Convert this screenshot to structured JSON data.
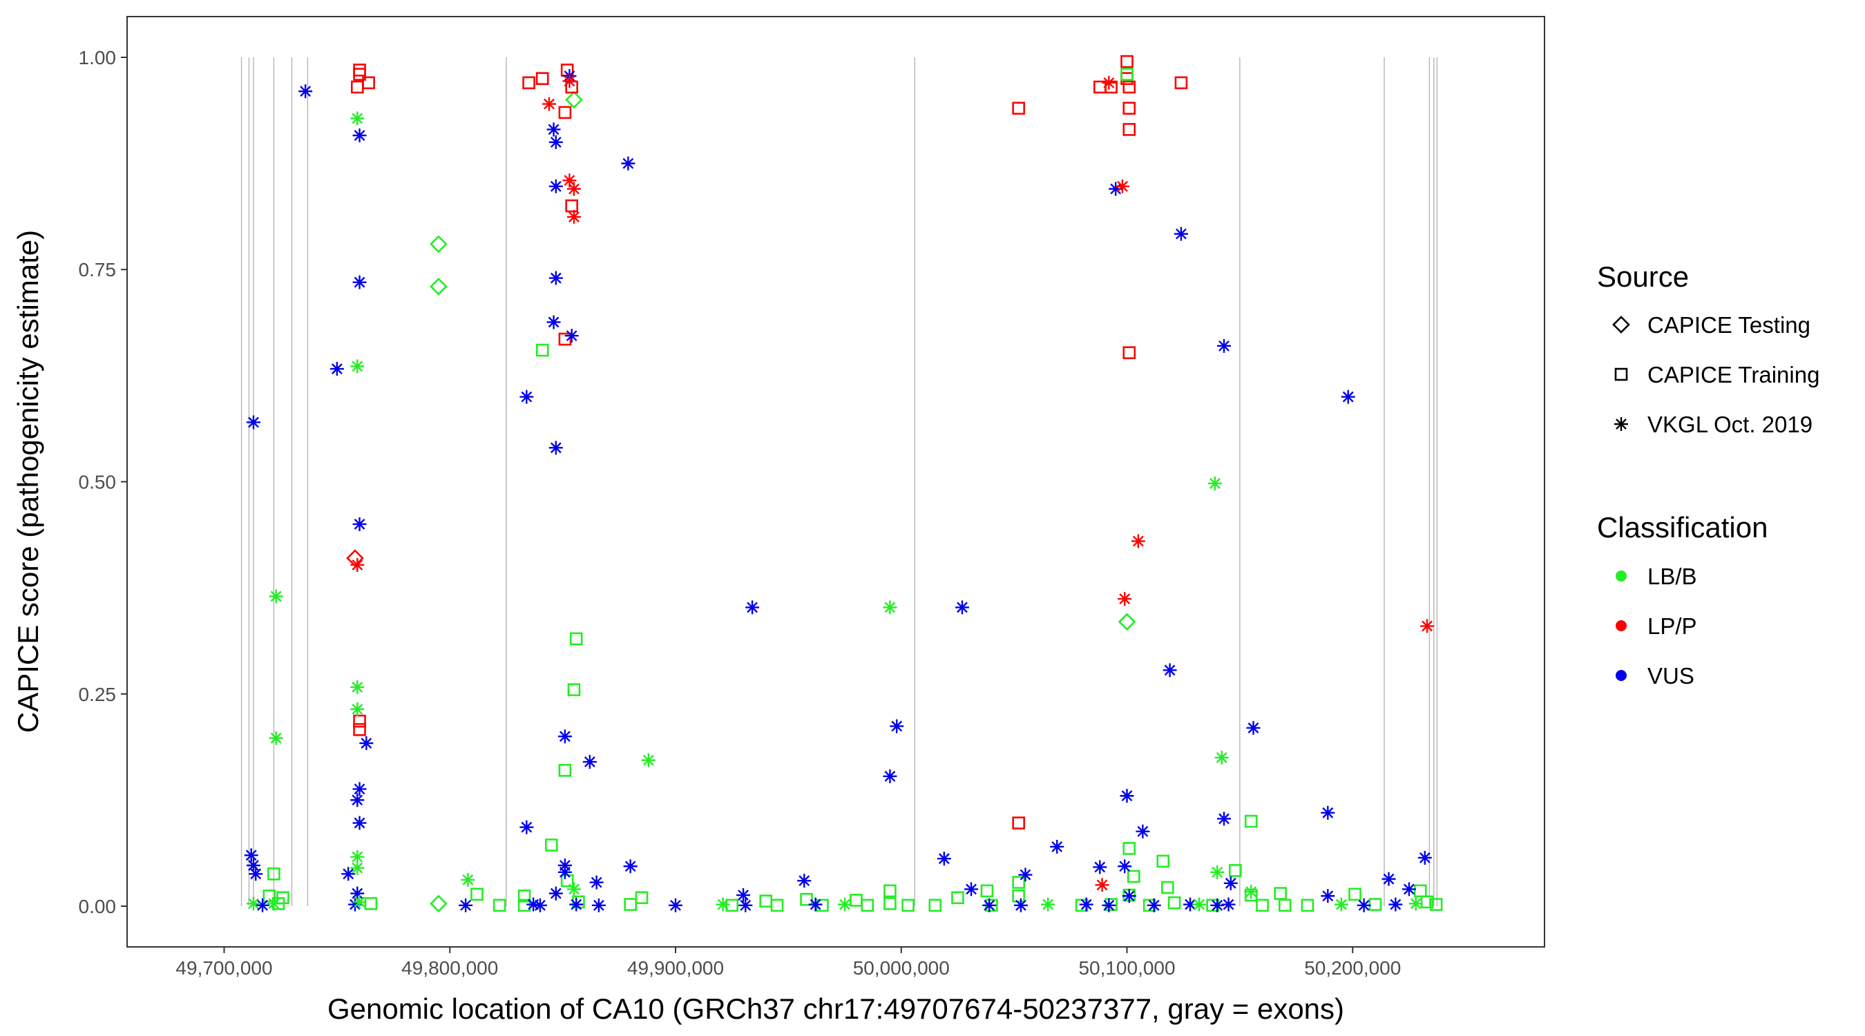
{
  "chart_data": {
    "type": "scatter",
    "xlabel": "Genomic location of CA10 (GRCh37 chr17:49707674-50237377, gray = exons)",
    "ylabel": "CAPICE score (pathogenicity estimate)",
    "xlim": [
      49657000,
      50285000
    ],
    "ylim": [
      -0.048,
      1.048
    ],
    "x_ticks": [
      49700000,
      49800000,
      49900000,
      50000000,
      50100000,
      50200000
    ],
    "x_tick_labels": [
      "49,700,000",
      "49,800,000",
      "49,900,000",
      "50,000,000",
      "50,100,000",
      "50,200,000"
    ],
    "y_ticks": [
      0,
      0.25,
      0.5,
      0.75,
      1
    ],
    "y_tick_labels": [
      "0.00",
      "0.25",
      "0.50",
      "0.75",
      "1.00"
    ],
    "grid": false,
    "exons": [
      49707674,
      49711000,
      49713000,
      49722000,
      49730000,
      49737000,
      49825000,
      50006000,
      50150000,
      50214000,
      50234000,
      50236000,
      50237377
    ],
    "colors": {
      "LB/B": "#22ee22",
      "LP/P": "#ff0000",
      "VUS": "#0000ee"
    },
    "legend": {
      "source_title": "Source",
      "source_items": [
        {
          "label": "CAPICE Testing",
          "shape": "diamond"
        },
        {
          "label": "CAPICE Training",
          "shape": "square"
        },
        {
          "label": "VKGL Oct. 2019",
          "shape": "asterisk"
        }
      ],
      "class_title": "Classification",
      "class_items": [
        {
          "label": "LB/B",
          "color": "#22ee22"
        },
        {
          "label": "LP/P",
          "color": "#ff0000"
        },
        {
          "label": "VUS",
          "color": "#0000ee"
        }
      ],
      "position": "right"
    },
    "series": [
      {
        "name": "CAPICE Testing",
        "shape": "diamond",
        "points": [
          [
            49855000,
            0.95,
            "LB/B"
          ],
          [
            49795000,
            0.78,
            "LB/B"
          ],
          [
            49795000,
            0.73,
            "LB/B"
          ],
          [
            49758000,
            0.41,
            "LP/P"
          ],
          [
            50100000,
            0.335,
            "LB/B"
          ],
          [
            49795000,
            0.003,
            "LB/B"
          ]
        ]
      },
      {
        "name": "CAPICE Training",
        "shape": "square",
        "points": [
          [
            49760000,
            0.985,
            "LP/P"
          ],
          [
            49760000,
            0.98,
            "LP/P"
          ],
          [
            49759000,
            0.965,
            "LP/P"
          ],
          [
            49764000,
            0.97,
            "LP/P"
          ],
          [
            49835000,
            0.97,
            "LP/P"
          ],
          [
            49841000,
            0.975,
            "LP/P"
          ],
          [
            49852000,
            0.985,
            "LP/P"
          ],
          [
            49854000,
            0.965,
            "LP/P"
          ],
          [
            49851000,
            0.935,
            "LP/P"
          ],
          [
            49854000,
            0.825,
            "LP/P"
          ],
          [
            49851000,
            0.668,
            "LP/P"
          ],
          [
            49760000,
            0.218,
            "LP/P"
          ],
          [
            49760000,
            0.208,
            "LP/P"
          ],
          [
            50052000,
            0.94,
            "LP/P"
          ],
          [
            50088000,
            0.965,
            "LP/P"
          ],
          [
            50093000,
            0.965,
            "LP/P"
          ],
          [
            50100000,
            0.995,
            "LP/P"
          ],
          [
            50100000,
            0.975,
            "LP/P"
          ],
          [
            50101000,
            0.965,
            "LP/P"
          ],
          [
            50101000,
            0.94,
            "LP/P"
          ],
          [
            50101000,
            0.915,
            "LP/P"
          ],
          [
            50124000,
            0.97,
            "LP/P"
          ],
          [
            50101000,
            0.652,
            "LP/P"
          ],
          [
            50052000,
            0.098,
            "LP/P"
          ],
          [
            49841000,
            0.655,
            "LB/B"
          ],
          [
            49856000,
            0.315,
            "LB/B"
          ],
          [
            49855000,
            0.255,
            "LB/B"
          ],
          [
            49851000,
            0.16,
            "LB/B"
          ],
          [
            49845000,
            0.072,
            "LB/B"
          ],
          [
            50100000,
            0.98,
            "LB/B"
          ],
          [
            50155000,
            0.1,
            "LB/B"
          ],
          [
            50116000,
            0.053,
            "LB/B"
          ],
          [
            50101000,
            0.068,
            "LB/B"
          ],
          [
            50103000,
            0.035,
            "LB/B"
          ],
          [
            50148000,
            0.042,
            "LB/B"
          ],
          [
            49722000,
            0.038,
            "LB/B"
          ],
          [
            49720000,
            0.012,
            "LB/B"
          ],
          [
            49726000,
            0.01,
            "LB/B"
          ],
          [
            49724000,
            0.003,
            "LB/B"
          ],
          [
            49765000,
            0.003,
            "LB/B"
          ],
          [
            49812000,
            0.014,
            "LB/B"
          ],
          [
            49822000,
            0.001,
            "LB/B"
          ],
          [
            49833000,
            0.012,
            "LB/B"
          ],
          [
            49833000,
            0.001,
            "LB/B"
          ],
          [
            49852000,
            0.03,
            "LB/B"
          ],
          [
            49857000,
            0.005,
            "LB/B"
          ],
          [
            49880000,
            0.002,
            "LB/B"
          ],
          [
            49885000,
            0.01,
            "LB/B"
          ],
          [
            49925000,
            0.001,
            "LB/B"
          ],
          [
            49940000,
            0.006,
            "LB/B"
          ],
          [
            49945000,
            0.001,
            "LB/B"
          ],
          [
            49958000,
            0.008,
            "LB/B"
          ],
          [
            49965000,
            0.001,
            "LB/B"
          ],
          [
            49980000,
            0.007,
            "LB/B"
          ],
          [
            49985000,
            0.001,
            "LB/B"
          ],
          [
            49995000,
            0.018,
            "LB/B"
          ],
          [
            49995000,
            0.003,
            "LB/B"
          ],
          [
            50003000,
            0.001,
            "LB/B"
          ],
          [
            50015000,
            0.001,
            "LB/B"
          ],
          [
            50025000,
            0.01,
            "LB/B"
          ],
          [
            50038000,
            0.018,
            "LB/B"
          ],
          [
            50040000,
            0.001,
            "LB/B"
          ],
          [
            50052000,
            0.028,
            "LB/B"
          ],
          [
            50052000,
            0.012,
            "LB/B"
          ],
          [
            50080000,
            0.001,
            "LB/B"
          ],
          [
            50093000,
            0.002,
            "LB/B"
          ],
          [
            50101000,
            0.013,
            "LB/B"
          ],
          [
            50110000,
            0.001,
            "LB/B"
          ],
          [
            50118000,
            0.022,
            "LB/B"
          ],
          [
            50121000,
            0.004,
            "LB/B"
          ],
          [
            50138000,
            0.001,
            "LB/B"
          ],
          [
            50155000,
            0.013,
            "LB/B"
          ],
          [
            50160000,
            0.001,
            "LB/B"
          ],
          [
            50168000,
            0.015,
            "LB/B"
          ],
          [
            50170000,
            0.001,
            "LB/B"
          ],
          [
            50180000,
            0.001,
            "LB/B"
          ],
          [
            50201000,
            0.014,
            "LB/B"
          ],
          [
            50210000,
            0.002,
            "LB/B"
          ],
          [
            50230000,
            0.018,
            "LB/B"
          ],
          [
            50233000,
            0.005,
            "LB/B"
          ],
          [
            50237000,
            0.002,
            "LB/B"
          ]
        ]
      },
      {
        "name": "VKGL Oct. 2019",
        "shape": "asterisk",
        "points": [
          [
            49736000,
            0.96,
            "VUS"
          ],
          [
            49760000,
            0.908,
            "VUS"
          ],
          [
            49760000,
            0.735,
            "VUS"
          ],
          [
            49750000,
            0.633,
            "VUS"
          ],
          [
            49713000,
            0.57,
            "VUS"
          ],
          [
            49760000,
            0.45,
            "VUS"
          ],
          [
            49763000,
            0.192,
            "VUS"
          ],
          [
            49760000,
            0.138,
            "VUS"
          ],
          [
            49759000,
            0.125,
            "VUS"
          ],
          [
            49760000,
            0.098,
            "VUS"
          ],
          [
            49712000,
            0.06,
            "VUS"
          ],
          [
            49713000,
            0.048,
            "VUS"
          ],
          [
            49714000,
            0.038,
            "VUS"
          ],
          [
            49755000,
            0.038,
            "VUS"
          ],
          [
            49759000,
            0.015,
            "VUS"
          ],
          [
            49717000,
            0.001,
            "VUS"
          ],
          [
            49758000,
            0.002,
            "VUS"
          ],
          [
            49853000,
            0.978,
            "VUS"
          ],
          [
            49846000,
            0.915,
            "VUS"
          ],
          [
            49847000,
            0.9,
            "VUS"
          ],
          [
            49847000,
            0.848,
            "VUS"
          ],
          [
            49879000,
            0.875,
            "VUS"
          ],
          [
            49847000,
            0.74,
            "VUS"
          ],
          [
            49846000,
            0.688,
            "VUS"
          ],
          [
            49854000,
            0.672,
            "VUS"
          ],
          [
            49834000,
            0.6,
            "VUS"
          ],
          [
            49847000,
            0.54,
            "VUS"
          ],
          [
            49851000,
            0.2,
            "VUS"
          ],
          [
            49862000,
            0.17,
            "VUS"
          ],
          [
            49834000,
            0.093,
            "VUS"
          ],
          [
            49880000,
            0.047,
            "VUS"
          ],
          [
            49851000,
            0.048,
            "VUS"
          ],
          [
            49851000,
            0.04,
            "VUS"
          ],
          [
            49865000,
            0.028,
            "VUS"
          ],
          [
            49847000,
            0.015,
            "VUS"
          ],
          [
            49807000,
            0.001,
            "VUS"
          ],
          [
            49837000,
            0.002,
            "VUS"
          ],
          [
            49840000,
            0.001,
            "VUS"
          ],
          [
            49856000,
            0.002,
            "VUS"
          ],
          [
            49866000,
            0.001,
            "VUS"
          ],
          [
            49900000,
            0.001,
            "VUS"
          ],
          [
            49934000,
            0.352,
            "VUS"
          ],
          [
            49930000,
            0.013,
            "VUS"
          ],
          [
            49931000,
            0.001,
            "VUS"
          ],
          [
            49957000,
            0.03,
            "VUS"
          ],
          [
            49962000,
            0.002,
            "VUS"
          ],
          [
            49998000,
            0.212,
            "VUS"
          ],
          [
            49995000,
            0.153,
            "VUS"
          ],
          [
            50027000,
            0.352,
            "VUS"
          ],
          [
            50019000,
            0.056,
            "VUS"
          ],
          [
            50031000,
            0.02,
            "VUS"
          ],
          [
            50039000,
            0.001,
            "VUS"
          ],
          [
            50055000,
            0.037,
            "VUS"
          ],
          [
            50053000,
            0.001,
            "VUS"
          ],
          [
            50069000,
            0.07,
            "VUS"
          ],
          [
            50095000,
            0.845,
            "VUS"
          ],
          [
            50124000,
            0.792,
            "VUS"
          ],
          [
            50143000,
            0.66,
            "VUS"
          ],
          [
            50198000,
            0.6,
            "VUS"
          ],
          [
            50119000,
            0.278,
            "VUS"
          ],
          [
            50156000,
            0.21,
            "VUS"
          ],
          [
            50100000,
            0.13,
            "VUS"
          ],
          [
            50189000,
            0.11,
            "VUS"
          ],
          [
            50143000,
            0.103,
            "VUS"
          ],
          [
            50107000,
            0.088,
            "VUS"
          ],
          [
            50232000,
            0.057,
            "VUS"
          ],
          [
            50088000,
            0.046,
            "VUS"
          ],
          [
            50099000,
            0.047,
            "VUS"
          ],
          [
            50216000,
            0.032,
            "VUS"
          ],
          [
            50146000,
            0.027,
            "VUS"
          ],
          [
            50225000,
            0.02,
            "VUS"
          ],
          [
            50101000,
            0.012,
            "VUS"
          ],
          [
            50189000,
            0.012,
            "VUS"
          ],
          [
            50082000,
            0.002,
            "VUS"
          ],
          [
            50092000,
            0.001,
            "VUS"
          ],
          [
            50112000,
            0.001,
            "VUS"
          ],
          [
            50128000,
            0.002,
            "VUS"
          ],
          [
            50140000,
            0.001,
            "VUS"
          ],
          [
            50145000,
            0.002,
            "VUS"
          ],
          [
            50205000,
            0.001,
            "VUS"
          ],
          [
            50219000,
            0.002,
            "VUS"
          ],
          [
            49844000,
            0.945,
            "LP/P"
          ],
          [
            49853000,
            0.972,
            "LP/P"
          ],
          [
            49853000,
            0.855,
            "LP/P"
          ],
          [
            49855000,
            0.845,
            "LP/P"
          ],
          [
            49855000,
            0.812,
            "LP/P"
          ],
          [
            49759000,
            0.402,
            "LP/P"
          ],
          [
            50098000,
            0.848,
            "LP/P"
          ],
          [
            50092000,
            0.97,
            "LP/P"
          ],
          [
            50105000,
            0.43,
            "LP/P"
          ],
          [
            50099000,
            0.362,
            "LP/P"
          ],
          [
            50233000,
            0.33,
            "LP/P"
          ],
          [
            50089000,
            0.025,
            "LP/P"
          ],
          [
            49759000,
            0.928,
            "LB/B"
          ],
          [
            49759000,
            0.636,
            "LB/B"
          ],
          [
            49723000,
            0.365,
            "LB/B"
          ],
          [
            49759000,
            0.258,
            "LB/B"
          ],
          [
            49759000,
            0.232,
            "LB/B"
          ],
          [
            49723000,
            0.198,
            "LB/B"
          ],
          [
            49759000,
            0.058,
            "LB/B"
          ],
          [
            49759000,
            0.045,
            "LB/B"
          ],
          [
            49713000,
            0.003,
            "LB/B"
          ],
          [
            49722000,
            0.003,
            "LB/B"
          ],
          [
            49760000,
            0.005,
            "LB/B"
          ],
          [
            49808000,
            0.031,
            "LB/B"
          ],
          [
            49855000,
            0.02,
            "LB/B"
          ],
          [
            49888000,
            0.172,
            "LB/B"
          ],
          [
            49921000,
            0.002,
            "LB/B"
          ],
          [
            49975000,
            0.002,
            "LB/B"
          ],
          [
            49995000,
            0.352,
            "LB/B"
          ],
          [
            50139000,
            0.498,
            "LB/B"
          ],
          [
            50142000,
            0.175,
            "LB/B"
          ],
          [
            50140000,
            0.04,
            "LB/B"
          ],
          [
            50155000,
            0.017,
            "LB/B"
          ],
          [
            50065000,
            0.002,
            "LB/B"
          ],
          [
            50132000,
            0.002,
            "LB/B"
          ],
          [
            50195000,
            0.002,
            "LB/B"
          ],
          [
            50228000,
            0.003,
            "LB/B"
          ]
        ]
      }
    ]
  }
}
